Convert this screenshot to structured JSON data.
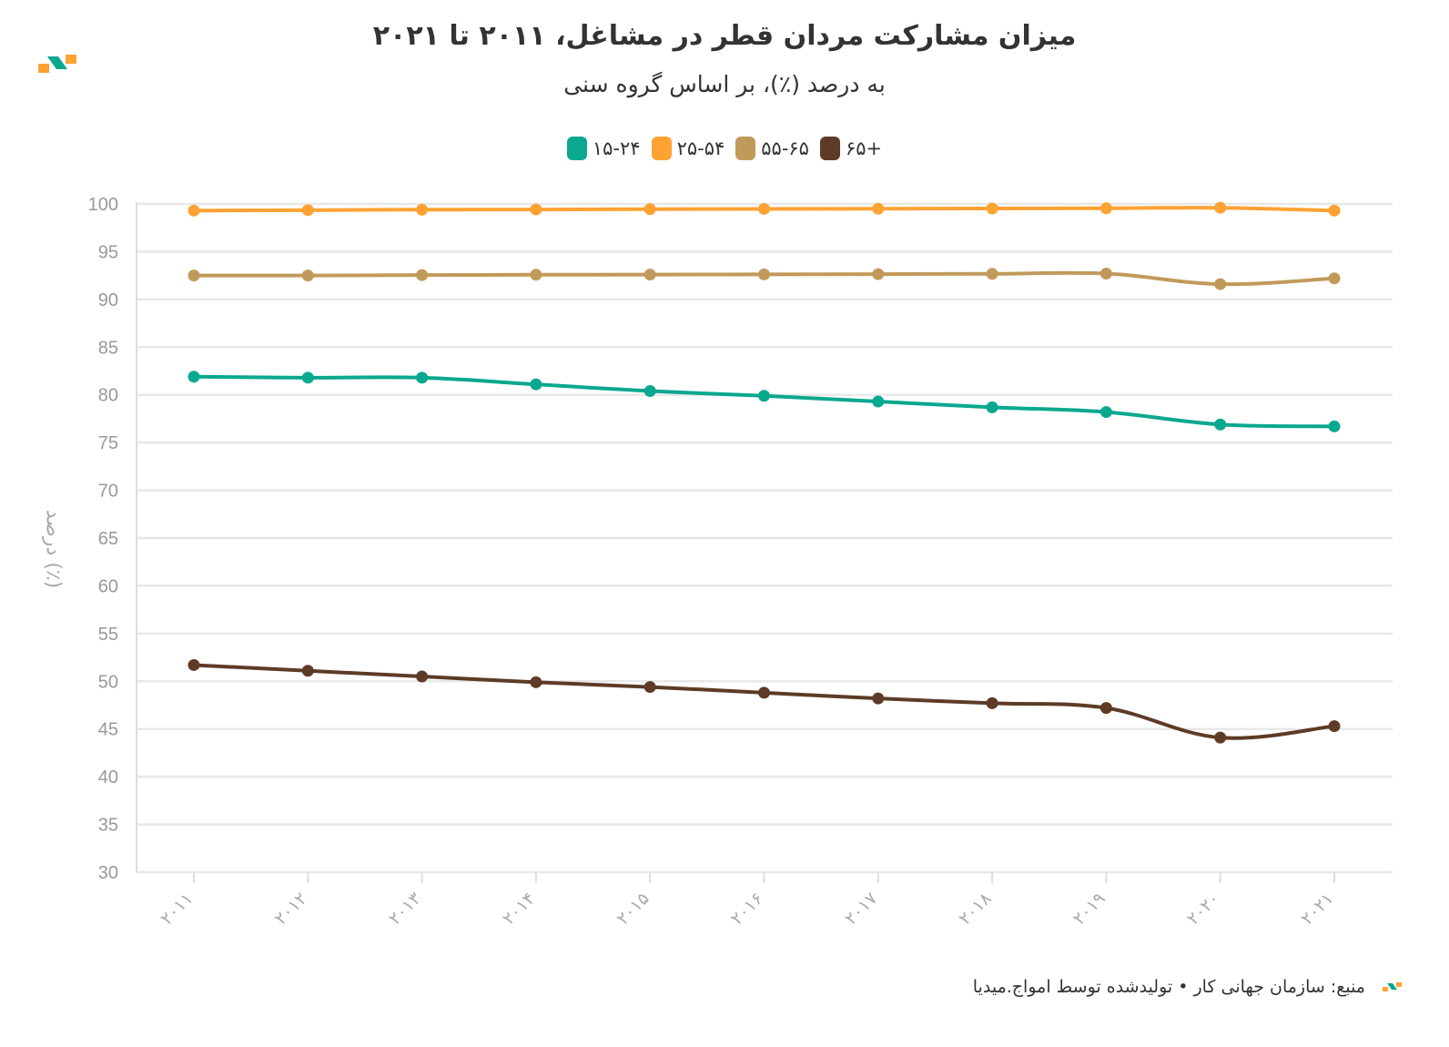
{
  "title": "میزان مشارکت مردان قطر در مشاغل، ۲۰۱۱ تا ۲۰۲۱",
  "subtitle": "به درصد (٪)، بر اساس گروه سنی",
  "source": "منبع: سازمان جهانی کار • تولیدشده توسط امواج.میدیا",
  "logo_icon": "amwaj-logo-icon",
  "chart_data": {
    "type": "line",
    "ylabel": "درصد (٪)",
    "xlabel": "",
    "ylim": [
      30,
      100
    ],
    "yticks": [
      30,
      35,
      40,
      45,
      50,
      55,
      60,
      65,
      70,
      75,
      80,
      85,
      90,
      95,
      100
    ],
    "x": [
      "۲۰۱۱",
      "۲۰۱۲",
      "۲۰۱۳",
      "۲۰۱۴",
      "۲۰۱۵",
      "۲۰۱۶",
      "۲۰۱۷",
      "۲۰۱۸",
      "۲۰۱۹",
      "۲۰۲۰",
      "۲۰۲۱"
    ],
    "grid": true,
    "legend_position": "top-center",
    "series": [
      {
        "name": "۱۵-۲۴",
        "color": "#0aa88f",
        "values": [
          81.9,
          81.8,
          81.8,
          81.1,
          80.4,
          79.9,
          79.3,
          78.7,
          78.2,
          76.9,
          76.7
        ]
      },
      {
        "name": "۲۵-۵۴",
        "color": "#ffa234",
        "values": [
          99.3,
          99.35,
          99.4,
          99.42,
          99.45,
          99.48,
          99.5,
          99.52,
          99.55,
          99.6,
          99.3
        ]
      },
      {
        "name": "۵۵-۶۵",
        "color": "#c19a5b",
        "values": [
          92.5,
          92.5,
          92.55,
          92.58,
          92.6,
          92.62,
          92.65,
          92.68,
          92.7,
          91.6,
          92.2
        ]
      },
      {
        "name": "۶۵+",
        "color": "#5e3b26",
        "values": [
          51.7,
          51.1,
          50.5,
          49.9,
          49.4,
          48.8,
          48.2,
          47.7,
          47.2,
          44.1,
          45.3
        ]
      }
    ]
  }
}
